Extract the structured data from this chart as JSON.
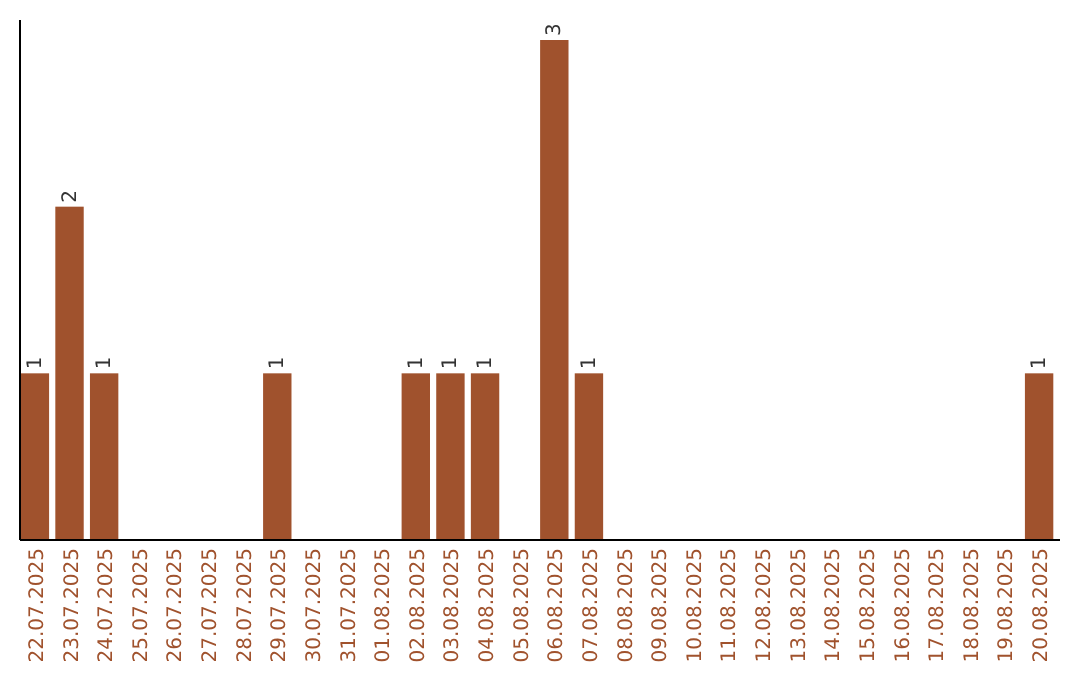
{
  "chart_data": {
    "type": "bar",
    "relative": false,
    "categories": [
      "22.07.2025",
      "23.07.2025",
      "24.07.2025",
      "25.07.2025",
      "26.07.2025",
      "27.07.2025",
      "28.07.2025",
      "29.07.2025",
      "30.07.2025",
      "31.07.2025",
      "01.08.2025",
      "02.08.2025",
      "03.08.2025",
      "04.08.2025",
      "05.08.2025",
      "06.08.2025",
      "07.08.2025",
      "08.08.2025",
      "09.08.2025",
      "10.08.2025",
      "11.08.2025",
      "12.08.2025",
      "13.08.2025",
      "14.08.2025",
      "15.08.2025",
      "16.08.2025",
      "17.08.2025",
      "18.08.2025",
      "19.08.2025",
      "20.08.2025"
    ],
    "values": [
      1,
      2,
      1,
      0,
      0,
      0,
      0,
      1,
      0,
      0,
      0,
      1,
      1,
      1,
      0,
      3,
      1,
      0,
      0,
      0,
      0,
      0,
      0,
      0,
      0,
      0,
      0,
      0,
      0,
      1
    ],
    "value_labels": [
      "1",
      "2",
      "1",
      null,
      null,
      null,
      null,
      "1",
      null,
      null,
      null,
      "1",
      "1",
      "1",
      null,
      "3",
      "1",
      null,
      null,
      null,
      null,
      null,
      null,
      null,
      null,
      null,
      null,
      null,
      null,
      "1"
    ],
    "color": "#a0522d"
  }
}
